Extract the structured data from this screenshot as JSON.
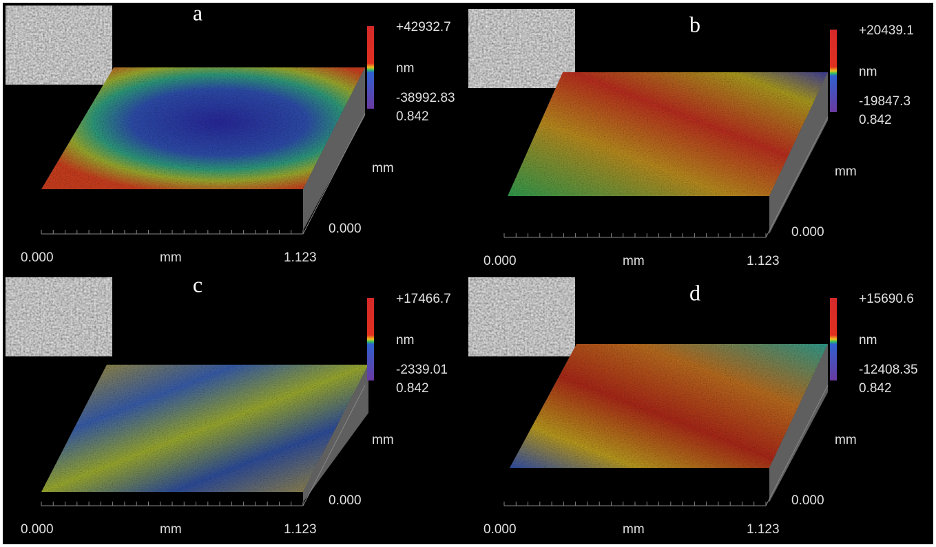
{
  "panels": [
    {
      "label": "a",
      "z_max": "+42932.7",
      "z_unit": "nm",
      "z_min": "-38992.83",
      "y_max": "0.842",
      "y_unit": "mm",
      "y_min": "0.000",
      "x_min": "0.000",
      "x_unit": "mm",
      "x_max": "1.123"
    },
    {
      "label": "b",
      "z_max": "+20439.1",
      "z_unit": "nm",
      "z_min": "-19847.3",
      "y_max": "0.842",
      "y_unit": "mm",
      "y_min": "0.000",
      "x_min": "0.000",
      "x_unit": "mm",
      "x_max": "1.123"
    },
    {
      "label": "c",
      "z_max": "+17466.7",
      "z_unit": "nm",
      "z_min": "-2339.01",
      "y_max": "0.842",
      "y_unit": "mm",
      "y_min": "0.000",
      "x_min": "0.000",
      "x_unit": "mm",
      "x_max": "1.123"
    },
    {
      "label": "d",
      "z_max": "+15690.6",
      "z_unit": "nm",
      "z_min": "-12408.35",
      "y_max": "0.842",
      "y_unit": "mm",
      "y_min": "0.000",
      "x_min": "0.000",
      "x_unit": "mm",
      "x_max": "1.123"
    }
  ]
}
